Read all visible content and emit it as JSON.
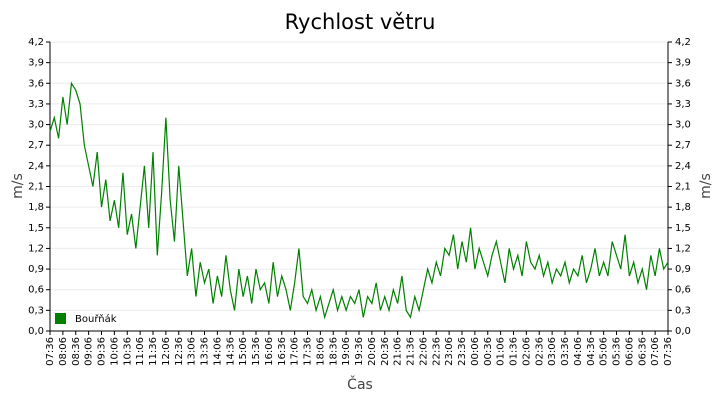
{
  "chart_data": {
    "type": "line",
    "title": "Rychlost větru",
    "xlabel": "Čas",
    "ylabel": "m/s",
    "y2label": "m/s",
    "categories": [
      "07:36",
      null,
      null,
      "08:06",
      null,
      null,
      "08:36",
      null,
      null,
      "09:06",
      null,
      null,
      "09:36",
      null,
      null,
      "10:06",
      null,
      null,
      "10:36",
      null,
      null,
      "11:06",
      null,
      null,
      "11:36",
      null,
      null,
      "12:06",
      null,
      null,
      "12:36",
      null,
      null,
      "13:06",
      null,
      null,
      "13:36",
      null,
      null,
      "14:06",
      null,
      null,
      "14:36",
      null,
      null,
      "15:06",
      null,
      null,
      "15:36",
      null,
      null,
      "16:06",
      null,
      null,
      "16:36",
      null,
      null,
      "17:06",
      null,
      null,
      "17:36",
      null,
      null,
      "18:06",
      null,
      null,
      "18:36",
      null,
      null,
      "19:06",
      null,
      null,
      "19:36",
      null,
      null,
      "20:06",
      null,
      null,
      "20:36",
      null,
      null,
      "21:06",
      null,
      null,
      "21:36",
      null,
      null,
      "22:06",
      null,
      null,
      "22:36",
      null,
      null,
      "23:06",
      null,
      null,
      "23:36",
      null,
      null,
      "00:06",
      null,
      null,
      "00:36",
      null,
      null,
      "01:06",
      null,
      null,
      "01:36",
      null,
      null,
      "02:06",
      null,
      null,
      "02:36",
      null,
      null,
      "03:06",
      null,
      null,
      "03:36",
      null,
      null,
      "04:06",
      null,
      null,
      "04:36",
      null,
      null,
      "05:06",
      null,
      null,
      "05:36",
      null,
      null,
      "06:06",
      null,
      null,
      "06:36",
      null,
      null,
      "07:06",
      null,
      null,
      "07:36"
    ],
    "series": [
      {
        "name": "Bouřňák",
        "color": "#008000",
        "values": [
          2.9,
          3.1,
          2.8,
          3.4,
          3.0,
          3.6,
          3.5,
          3.3,
          2.7,
          2.4,
          2.1,
          2.6,
          1.8,
          2.2,
          1.6,
          1.9,
          1.5,
          2.3,
          1.4,
          1.7,
          1.2,
          1.8,
          2.4,
          1.5,
          2.6,
          1.1,
          2.0,
          3.1,
          1.9,
          1.3,
          2.4,
          1.6,
          0.8,
          1.2,
          0.5,
          1.0,
          0.7,
          0.9,
          0.4,
          0.8,
          0.5,
          1.1,
          0.6,
          0.3,
          0.9,
          0.5,
          0.8,
          0.4,
          0.9,
          0.6,
          0.7,
          0.4,
          1.0,
          0.5,
          0.8,
          0.6,
          0.3,
          0.7,
          1.2,
          0.5,
          0.4,
          0.6,
          0.3,
          0.5,
          0.2,
          0.4,
          0.6,
          0.3,
          0.5,
          0.3,
          0.5,
          0.4,
          0.6,
          0.2,
          0.5,
          0.4,
          0.7,
          0.3,
          0.5,
          0.3,
          0.6,
          0.4,
          0.8,
          0.3,
          0.2,
          0.5,
          0.3,
          0.6,
          0.9,
          0.7,
          1.0,
          0.8,
          1.2,
          1.1,
          1.4,
          0.9,
          1.3,
          1.0,
          1.5,
          0.9,
          1.2,
          1.0,
          0.8,
          1.1,
          1.3,
          1.0,
          0.7,
          1.2,
          0.9,
          1.1,
          0.8,
          1.3,
          1.0,
          0.9,
          1.1,
          0.8,
          1.0,
          0.7,
          0.9,
          0.8,
          1.0,
          0.7,
          0.9,
          0.8,
          1.1,
          0.7,
          0.9,
          1.2,
          0.8,
          1.0,
          0.8,
          1.3,
          1.1,
          0.9,
          1.4,
          0.8,
          1.0,
          0.7,
          0.9,
          0.6,
          1.1,
          0.8,
          1.2,
          0.9,
          1.0
        ]
      }
    ],
    "ylim": [
      0,
      4.2
    ],
    "yticks": [
      {
        "value": 0,
        "label": "0,0"
      },
      {
        "value": 0.3,
        "label": "0,3"
      },
      {
        "value": 0.6,
        "label": "0,6"
      },
      {
        "value": 0.9,
        "label": "0,9"
      },
      {
        "value": 1.2,
        "label": "1,2"
      },
      {
        "value": 1.5,
        "label": "1,5"
      },
      {
        "value": 1.8,
        "label": "1,8"
      },
      {
        "value": 2.1,
        "label": "2,1"
      },
      {
        "value": 2.4,
        "label": "2,4"
      },
      {
        "value": 2.7,
        "label": "2,7"
      },
      {
        "value": 3.0,
        "label": "3,0"
      },
      {
        "value": 3.3,
        "label": "3,3"
      },
      {
        "value": 3.6,
        "label": "3,6"
      },
      {
        "value": 3.9,
        "label": "3,9"
      },
      {
        "value": 4.2,
        "label": "4,2"
      }
    ],
    "y2lim": [
      0,
      4.2
    ],
    "y2ticks": [
      {
        "value": 0,
        "label": "0,0"
      },
      {
        "value": 0.3,
        "label": "0,3"
      },
      {
        "value": 0.6,
        "label": "0,6"
      },
      {
        "value": 0.9,
        "label": "0,9"
      },
      {
        "value": 1.2,
        "label": "1,2"
      },
      {
        "value": 1.5,
        "label": "1,5"
      },
      {
        "value": 1.8,
        "label": "1,8"
      },
      {
        "value": 2.1,
        "label": "2,1"
      },
      {
        "value": 2.4,
        "label": "2,4"
      },
      {
        "value": 2.7,
        "label": "2,7"
      },
      {
        "value": 3.0,
        "label": "3,0"
      },
      {
        "value": 3.3,
        "label": "3,3"
      },
      {
        "value": 3.6,
        "label": "3,6"
      },
      {
        "value": 3.9,
        "label": "3,9"
      },
      {
        "value": 4.2,
        "label": "4,2"
      }
    ],
    "grid": true,
    "legend": "lower-left"
  }
}
